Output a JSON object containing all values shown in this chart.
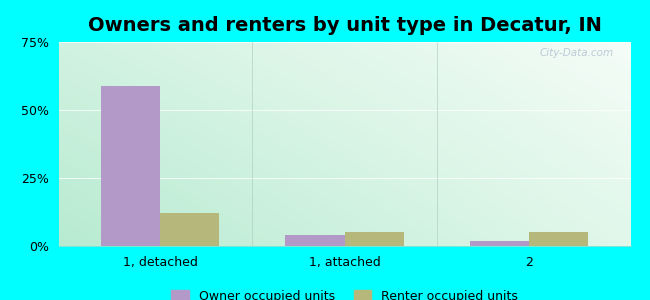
{
  "title": "Owners and renters by unit type in Decatur, IN",
  "categories": [
    "1, detached",
    "1, attached",
    "2"
  ],
  "owner_values": [
    59,
    4,
    2
  ],
  "renter_values": [
    12,
    5,
    5
  ],
  "owner_color": "#b399c8",
  "renter_color": "#b5b87a",
  "ylim": [
    0,
    75
  ],
  "yticks": [
    0,
    25,
    50,
    75
  ],
  "ytick_labels": [
    "0%",
    "25%",
    "50%",
    "75%"
  ],
  "bar_width": 0.32,
  "outer_bg": "#00ffff",
  "watermark": "City-Data.com",
  "legend_owner": "Owner occupied units",
  "legend_renter": "Renter occupied units",
  "title_fontsize": 14,
  "tick_fontsize": 9,
  "legend_fontsize": 9,
  "bg_topleft": [
    0.82,
    0.95,
    0.88,
    1.0
  ],
  "bg_topright": [
    0.96,
    0.99,
    0.97,
    1.0
  ],
  "bg_bottomleft": [
    0.72,
    0.92,
    0.82,
    1.0
  ],
  "bg_bottomright": [
    0.88,
    0.97,
    0.92,
    1.0
  ]
}
